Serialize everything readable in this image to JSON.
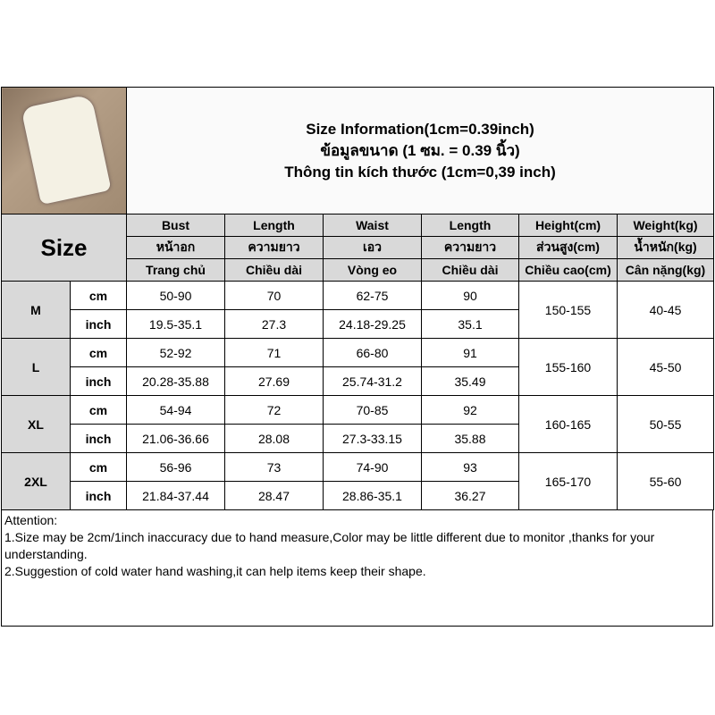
{
  "title": {
    "en": "Size Information(1cm=0.39inch)",
    "th": "ข้อมูลขนาด (1 ซม. = 0.39 นิ้ว)",
    "vi": "Thông tin kích thước (1cm=0,39 inch)"
  },
  "size_label": "Size",
  "headers": [
    [
      "Bust",
      "หน้าอก",
      "Trang chủ"
    ],
    [
      "Length",
      "ความยาว",
      "Chiều dài"
    ],
    [
      "Waist",
      "เอว",
      "Vòng eo"
    ],
    [
      "Length",
      "ความยาว",
      "Chiều dài"
    ],
    [
      "Height(cm)",
      "ส่วนสูง(cm)",
      "Chiều cao(cm)"
    ],
    [
      "Weight(kg)",
      "น้ำหนัก(kg)",
      "Cân nặng(kg)"
    ]
  ],
  "units": [
    "cm",
    "inch"
  ],
  "rows": [
    {
      "size": "M",
      "cm": [
        "50-90",
        "70",
        "62-75",
        "90"
      ],
      "inch": [
        "19.5-35.1",
        "27.3",
        "24.18-29.25",
        "35.1"
      ],
      "height": "150-155",
      "weight": "40-45"
    },
    {
      "size": "L",
      "cm": [
        "52-92",
        "71",
        "66-80",
        "91"
      ],
      "inch": [
        "20.28-35.88",
        "27.69",
        "25.74-31.2",
        "35.49"
      ],
      "height": "155-160",
      "weight": "45-50"
    },
    {
      "size": "XL",
      "cm": [
        "54-94",
        "72",
        "70-85",
        "92"
      ],
      "inch": [
        "21.06-36.66",
        "28.08",
        "27.3-33.15",
        "35.88"
      ],
      "height": "160-165",
      "weight": "50-55"
    },
    {
      "size": "2XL",
      "cm": [
        "56-96",
        "73",
        "74-90",
        "93"
      ],
      "inch": [
        "21.84-37.44",
        "28.47",
        "28.86-35.1",
        "36.27"
      ],
      "height": "165-170",
      "weight": "55-60"
    }
  ],
  "attention": {
    "heading": "Attention:",
    "lines": [
      "1.Size may be 2cm/1inch inaccuracy due to hand measure,Color may be little different due to monitor ,thanks for your understanding.",
      "2.Suggestion of cold water hand washing,it can help items keep their shape."
    ]
  }
}
